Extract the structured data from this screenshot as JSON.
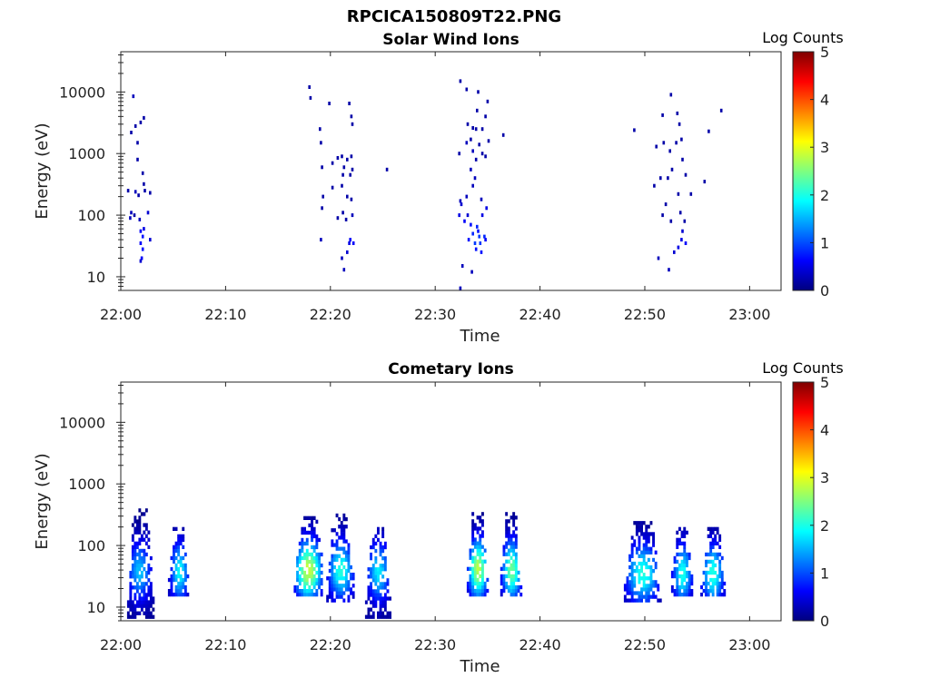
{
  "figure": {
    "filename": "RPCICA150809T22.PNG"
  },
  "colormap": [
    "#00007f",
    "#0000ff",
    "#007fff",
    "#00ffff",
    "#7fff7f",
    "#ffff00",
    "#ff7f00",
    "#ff0000",
    "#7f0000"
  ],
  "chart_data": [
    {
      "type": "heatmap",
      "title": "Solar Wind Ions",
      "xlabel": "Time",
      "ylabel": "Energy (eV)",
      "x_ticks": [
        "22:00",
        "22:10",
        "22:20",
        "22:30",
        "22:40",
        "22:50",
        "23:00"
      ],
      "x_range_minutes": [
        0,
        63
      ],
      "y_scale": "log",
      "y_ticks": [
        {
          "value": 10,
          "label": "10"
        },
        {
          "value": 100,
          "label": "100"
        },
        {
          "value": 1000,
          "label": "1000"
        },
        {
          "value": 10000,
          "label": "10000"
        }
      ],
      "ylim": [
        6,
        45000
      ],
      "colorbar": {
        "label": "Log Counts",
        "min": 0,
        "max": 5,
        "ticks": [
          "0",
          "1",
          "2",
          "3",
          "4",
          "5"
        ]
      },
      "points": [
        [
          1.2,
          8500,
          0.3
        ],
        [
          1.0,
          2200,
          0.2
        ],
        [
          1.4,
          2800,
          0.2
        ],
        [
          1.6,
          1500,
          0.2
        ],
        [
          1.9,
          3200,
          0.2
        ],
        [
          2.2,
          3800,
          0.2
        ],
        [
          1.6,
          800,
          0.2
        ],
        [
          2.1,
          480,
          0.2
        ],
        [
          2.2,
          320,
          0.2
        ],
        [
          0.7,
          250,
          0.2
        ],
        [
          1.4,
          240,
          0.3
        ],
        [
          1.7,
          210,
          0.2
        ],
        [
          2.3,
          250,
          0.2
        ],
        [
          2.8,
          230,
          0.2
        ],
        [
          1.0,
          110,
          0.3
        ],
        [
          1.3,
          100,
          0.2
        ],
        [
          0.9,
          90,
          0.3
        ],
        [
          1.8,
          85,
          0.3
        ],
        [
          2.6,
          110,
          0.4
        ],
        [
          1.9,
          55,
          0.6
        ],
        [
          2.1,
          45,
          0.7
        ],
        [
          1.9,
          35,
          0.6
        ],
        [
          2.1,
          28,
          0.7
        ],
        [
          2.0,
          20,
          0.6
        ],
        [
          2.8,
          40,
          0.4
        ],
        [
          1.9,
          18,
          0.4
        ],
        [
          2.2,
          60,
          0.5
        ],
        [
          18.0,
          12000,
          0.2
        ],
        [
          18.1,
          8000,
          0.2
        ],
        [
          19.9,
          6500,
          0.2
        ],
        [
          19.0,
          2500,
          0.2
        ],
        [
          19.1,
          1500,
          0.2
        ],
        [
          21.8,
          6500,
          0.2
        ],
        [
          22.0,
          4000,
          0.2
        ],
        [
          22.1,
          3000,
          0.2
        ],
        [
          19.2,
          600,
          0.2
        ],
        [
          20.2,
          700,
          0.2
        ],
        [
          20.7,
          850,
          0.2
        ],
        [
          21.1,
          900,
          0.2
        ],
        [
          21.6,
          800,
          0.2
        ],
        [
          22.0,
          900,
          0.2
        ],
        [
          21.3,
          600,
          0.2
        ],
        [
          21.2,
          450,
          0.2
        ],
        [
          22.1,
          550,
          0.2
        ],
        [
          21.1,
          300,
          0.2
        ],
        [
          21.9,
          450,
          0.2
        ],
        [
          19.3,
          200,
          0.2
        ],
        [
          20.2,
          280,
          0.2
        ],
        [
          21.6,
          200,
          0.2
        ],
        [
          22.0,
          180,
          0.2
        ],
        [
          19.2,
          130,
          0.2
        ],
        [
          21.2,
          110,
          0.2
        ],
        [
          22.1,
          100,
          0.3
        ],
        [
          20.7,
          90,
          0.2
        ],
        [
          21.5,
          85,
          0.2
        ],
        [
          19.1,
          40,
          0.3
        ],
        [
          21.9,
          40,
          0.6
        ],
        [
          22.2,
          35,
          0.6
        ],
        [
          21.6,
          25,
          0.4
        ],
        [
          21.8,
          35,
          0.5
        ],
        [
          21.1,
          20,
          0.3
        ],
        [
          21.3,
          13,
          0.3
        ],
        [
          25.4,
          550,
          0.2
        ],
        [
          32.4,
          15000,
          0.2
        ],
        [
          33.0,
          11000,
          0.2
        ],
        [
          34.1,
          10000,
          0.2
        ],
        [
          35.0,
          7000,
          0.2
        ],
        [
          34.0,
          5000,
          0.2
        ],
        [
          34.8,
          4000,
          0.2
        ],
        [
          33.1,
          3000,
          0.2
        ],
        [
          33.6,
          2600,
          0.2
        ],
        [
          33.9,
          2500,
          0.2
        ],
        [
          34.5,
          2500,
          0.2
        ],
        [
          33.0,
          1500,
          0.3
        ],
        [
          33.4,
          1700,
          0.2
        ],
        [
          34.2,
          1400,
          0.2
        ],
        [
          35.1,
          1600,
          0.2
        ],
        [
          36.5,
          2000,
          0.2
        ],
        [
          32.3,
          1000,
          0.2
        ],
        [
          33.6,
          1100,
          0.3
        ],
        [
          34.5,
          1000,
          0.2
        ],
        [
          33.9,
          800,
          0.2
        ],
        [
          34.8,
          900,
          0.2
        ],
        [
          33.4,
          550,
          0.3
        ],
        [
          33.8,
          400,
          0.3
        ],
        [
          33.6,
          300,
          0.3
        ],
        [
          33.0,
          200,
          0.3
        ],
        [
          34.4,
          180,
          0.3
        ],
        [
          32.4,
          170,
          0.3
        ],
        [
          32.5,
          150,
          0.4
        ],
        [
          33.1,
          100,
          0.4
        ],
        [
          34.5,
          100,
          0.5
        ],
        [
          34.9,
          130,
          0.5
        ],
        [
          32.3,
          100,
          0.5
        ],
        [
          32.8,
          80,
          0.6
        ],
        [
          33.4,
          70,
          0.7
        ],
        [
          34.0,
          65,
          0.8
        ],
        [
          33.6,
          50,
          0.8
        ],
        [
          34.2,
          45,
          0.9
        ],
        [
          34.7,
          45,
          0.8
        ],
        [
          33.2,
          40,
          0.7
        ],
        [
          33.8,
          35,
          0.9
        ],
        [
          34.3,
          35,
          0.9
        ],
        [
          34.8,
          40,
          0.6
        ],
        [
          33.9,
          28,
          0.7
        ],
        [
          34.4,
          25,
          0.7
        ],
        [
          32.6,
          15,
          0.3
        ],
        [
          33.5,
          12,
          0.3
        ],
        [
          32.4,
          6.5,
          0.3
        ],
        [
          34.1,
          55,
          0.7
        ],
        [
          52.5,
          9000,
          0.2
        ],
        [
          51.7,
          4200,
          0.2
        ],
        [
          53.1,
          4500,
          0.2
        ],
        [
          53.3,
          3000,
          0.2
        ],
        [
          53.5,
          1700,
          0.2
        ],
        [
          57.3,
          5000,
          0.2
        ],
        [
          49.0,
          2400,
          0.2
        ],
        [
          56.1,
          2300,
          0.2
        ],
        [
          51.8,
          1500,
          0.2
        ],
        [
          53.0,
          1500,
          0.2
        ],
        [
          51.1,
          1300,
          0.2
        ],
        [
          52.4,
          1100,
          0.2
        ],
        [
          53.6,
          800,
          0.2
        ],
        [
          52.6,
          550,
          0.2
        ],
        [
          53.9,
          450,
          0.2
        ],
        [
          51.5,
          400,
          0.2
        ],
        [
          52.2,
          400,
          0.2
        ],
        [
          50.9,
          300,
          0.2
        ],
        [
          54.4,
          220,
          0.2
        ],
        [
          55.7,
          350,
          0.2
        ],
        [
          53.2,
          220,
          0.2
        ],
        [
          52.0,
          150,
          0.2
        ],
        [
          53.4,
          110,
          0.2
        ],
        [
          51.7,
          100,
          0.2
        ],
        [
          52.5,
          80,
          0.2
        ],
        [
          53.8,
          80,
          0.2
        ],
        [
          53.5,
          40,
          0.5
        ],
        [
          53.9,
          35,
          0.6
        ],
        [
          53.2,
          30,
          0.5
        ],
        [
          52.8,
          25,
          0.4
        ],
        [
          51.3,
          20,
          0.3
        ],
        [
          52.3,
          13,
          0.3
        ],
        [
          53.6,
          55,
          0.4
        ]
      ]
    },
    {
      "type": "heatmap",
      "title": "Cometary Ions",
      "xlabel": "Time",
      "ylabel": "Energy (eV)",
      "x_ticks": [
        "22:00",
        "22:10",
        "22:20",
        "22:30",
        "22:40",
        "22:50",
        "23:00"
      ],
      "x_range_minutes": [
        0,
        63
      ],
      "y_scale": "log",
      "y_ticks": [
        {
          "value": 10,
          "label": "10"
        },
        {
          "value": 100,
          "label": "100"
        },
        {
          "value": 1000,
          "label": "1000"
        },
        {
          "value": 10000,
          "label": "10000"
        }
      ],
      "ylim": [
        6,
        45000
      ],
      "colorbar": {
        "label": "Log Counts",
        "min": 0,
        "max": 5,
        "ticks": [
          "0",
          "1",
          "2",
          "3",
          "4",
          "5"
        ]
      },
      "blobs": [
        {
          "t0": 0.6,
          "t1": 3.2,
          "e0": 6.5,
          "e1": 400,
          "tp": 1.8,
          "ep": 38,
          "peak": 1.5,
          "density": 0.78
        },
        {
          "t0": 4.5,
          "t1": 6.5,
          "e0": 15,
          "e1": 200,
          "tp": 5.6,
          "ep": 38,
          "peak": 1.8,
          "density": 0.78
        },
        {
          "t0": 16.5,
          "t1": 19.5,
          "e0": 15,
          "e1": 300,
          "tp": 17.9,
          "ep": 40,
          "peak": 2.8,
          "density": 0.85
        },
        {
          "t0": 19.6,
          "t1": 22.3,
          "e0": 12,
          "e1": 380,
          "tp": 21.0,
          "ep": 40,
          "peak": 2.0,
          "density": 0.75
        },
        {
          "t0": 23.3,
          "t1": 25.8,
          "e0": 6.5,
          "e1": 200,
          "tp": 24.6,
          "ep": 38,
          "peak": 1.7,
          "density": 0.75
        },
        {
          "t0": 33.0,
          "t1": 35.1,
          "e0": 15,
          "e1": 350,
          "tp": 34.1,
          "ep": 42,
          "peak": 2.7,
          "density": 0.85
        },
        {
          "t0": 36.2,
          "t1": 38.3,
          "e0": 15,
          "e1": 350,
          "tp": 37.3,
          "ep": 40,
          "peak": 2.4,
          "density": 0.82
        },
        {
          "t0": 48.0,
          "t1": 51.6,
          "e0": 12,
          "e1": 250,
          "tp": 49.8,
          "ep": 35,
          "peak": 2.0,
          "density": 0.8
        },
        {
          "t0": 52.5,
          "t1": 54.6,
          "e0": 15,
          "e1": 200,
          "tp": 53.6,
          "ep": 35,
          "peak": 1.9,
          "density": 0.78
        },
        {
          "t0": 55.3,
          "t1": 57.7,
          "e0": 15,
          "e1": 200,
          "tp": 56.5,
          "ep": 35,
          "peak": 2.0,
          "density": 0.78
        }
      ]
    }
  ]
}
